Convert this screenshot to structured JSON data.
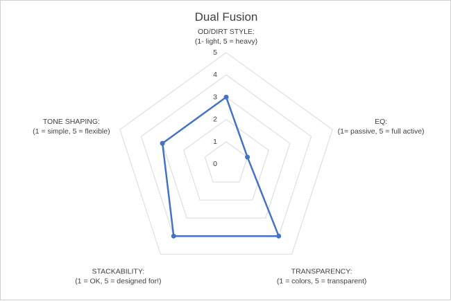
{
  "chart_data": {
    "type": "radar",
    "title": "Dual Fusion",
    "categories": [
      {
        "line1": "OD/DIRT STYLE:",
        "line2": "(1- light, 5 = heavy)"
      },
      {
        "line1": "EQ:",
        "line2": "(1= passive, 5 = full active)"
      },
      {
        "line1": "TRANSPARENCY:",
        "line2": "(1 = colors, 5 = transparent)"
      },
      {
        "line1": "STACKABILITY:",
        "line2": "(1 = OK, 5 = designed for!)"
      },
      {
        "line1": "TONE SHAPING:",
        "line2": "(1 = simple, 5 = flexible)"
      }
    ],
    "ticks": [
      "0",
      "1",
      "2",
      "3",
      "4",
      "5"
    ],
    "range": [
      0,
      5
    ],
    "series": [
      {
        "values": [
          3,
          1,
          4,
          4,
          3
        ],
        "color": "#4472c4"
      }
    ],
    "grid": true,
    "legend": "none"
  }
}
